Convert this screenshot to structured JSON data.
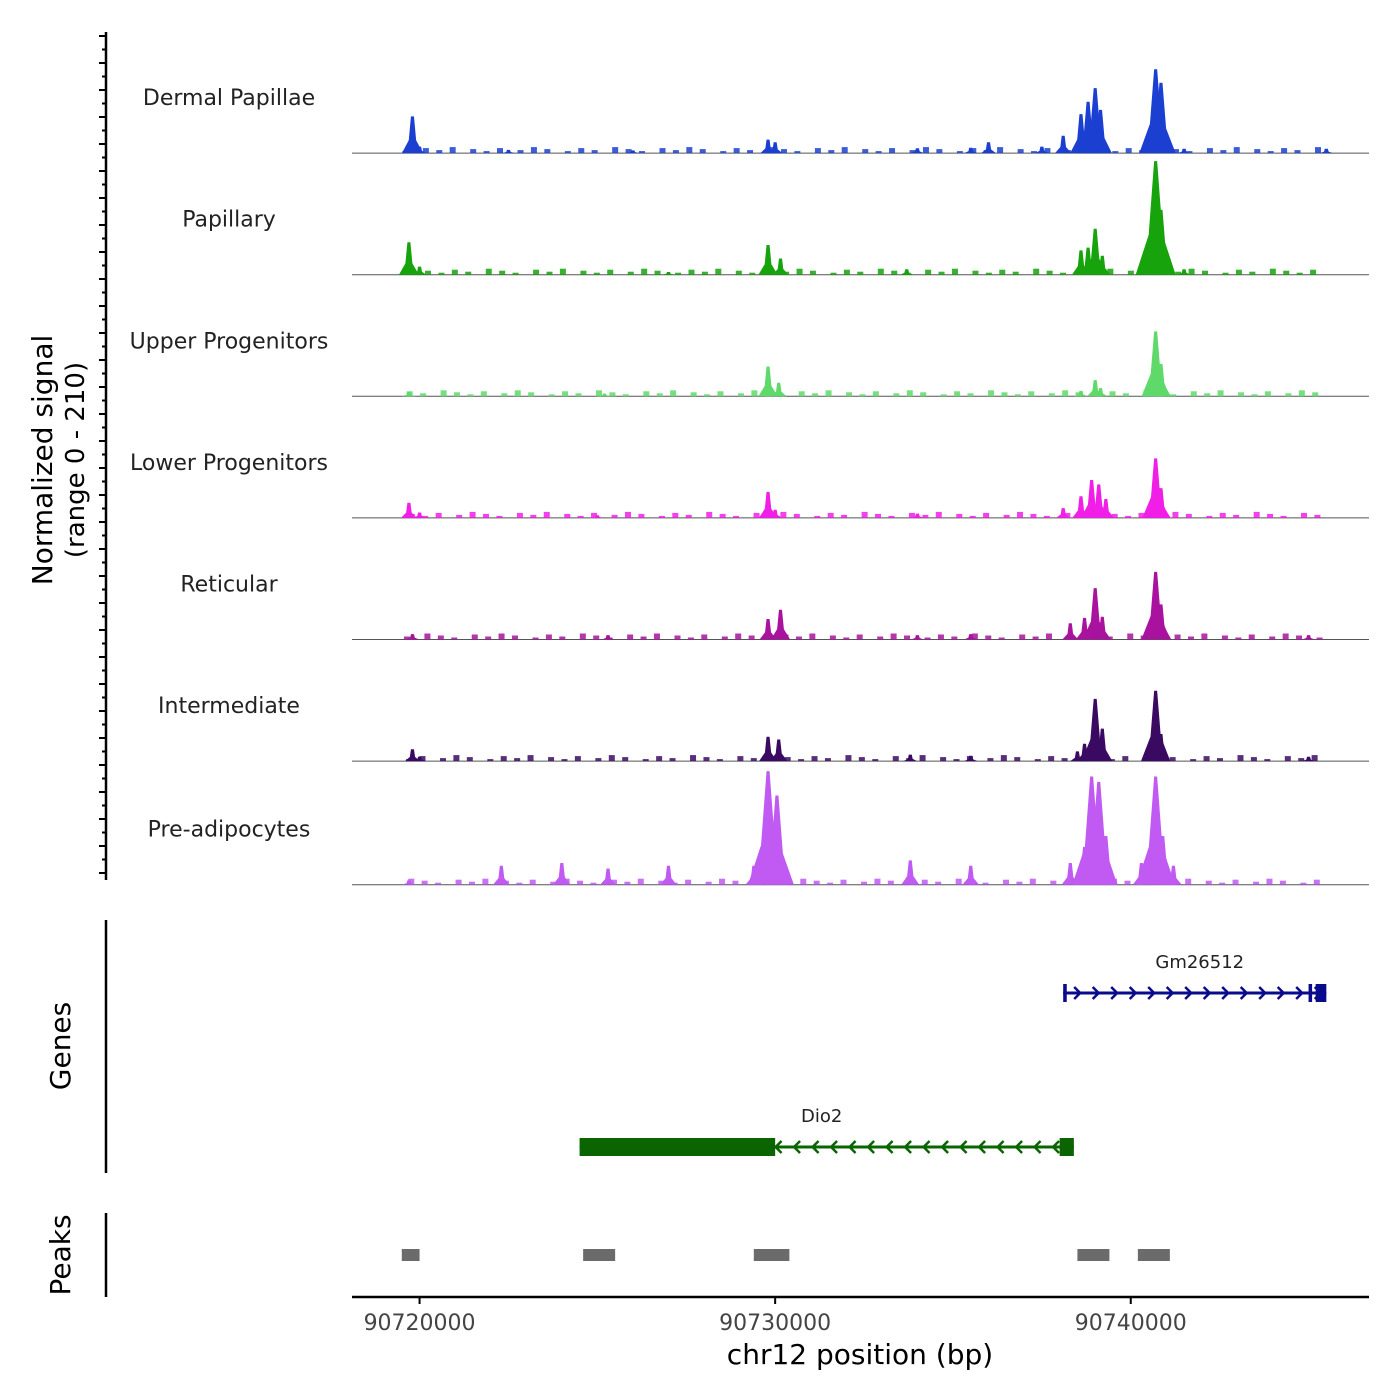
{
  "chart_data": {
    "type": "area",
    "title": "",
    "ylabel_line1": "Normalized signal",
    "ylabel_line2": "(range 0 - 210)",
    "xlabel": "chr12 position (bp)",
    "xlim": [
      90718100,
      90746700
    ],
    "ylim": [
      0,
      210
    ],
    "x_ticks": [
      "90720000",
      "90730000",
      "90740000"
    ],
    "x_tick_values": [
      90720000,
      90730000,
      90740000
    ],
    "series": [
      {
        "name": "Dermal Papillae",
        "color": "#1a3fd1",
        "peaks": [
          [
            90719800,
            68
          ],
          [
            90720000,
            12
          ],
          [
            90722500,
            6
          ],
          [
            90726000,
            5
          ],
          [
            90729800,
            25
          ],
          [
            90730000,
            20
          ],
          [
            90734000,
            9
          ],
          [
            90735500,
            10
          ],
          [
            90736000,
            20
          ],
          [
            90737500,
            12
          ],
          [
            90738100,
            32
          ],
          [
            90738600,
            72
          ],
          [
            90738800,
            95
          ],
          [
            90739000,
            120
          ],
          [
            90739150,
            80
          ],
          [
            90740700,
            155
          ],
          [
            90740850,
            130
          ],
          [
            90741500,
            8
          ],
          [
            90745500,
            8
          ]
        ]
      },
      {
        "name": "Papillary",
        "color": "#16a30c",
        "peaks": [
          [
            90719700,
            60
          ],
          [
            90720000,
            15
          ],
          [
            90727000,
            5
          ],
          [
            90729800,
            55
          ],
          [
            90730150,
            30
          ],
          [
            90733700,
            10
          ],
          [
            90738600,
            45
          ],
          [
            90738800,
            50
          ],
          [
            90739000,
            85
          ],
          [
            90739200,
            35
          ],
          [
            90740700,
            210
          ],
          [
            90740850,
            120
          ],
          [
            90741500,
            10
          ]
        ]
      },
      {
        "name": "Upper Progenitors",
        "color": "#5ed96a",
        "peaks": [
          [
            90719700,
            8
          ],
          [
            90725200,
            5
          ],
          [
            90729800,
            55
          ],
          [
            90730100,
            25
          ],
          [
            90738600,
            10
          ],
          [
            90739000,
            30
          ],
          [
            90739150,
            15
          ],
          [
            90740700,
            120
          ],
          [
            90740850,
            60
          ]
        ]
      },
      {
        "name": "Lower Progenitors",
        "color": "#f01ee6",
        "peaks": [
          [
            90719700,
            28
          ],
          [
            90720000,
            10
          ],
          [
            90725000,
            5
          ],
          [
            90729800,
            48
          ],
          [
            90730000,
            15
          ],
          [
            90734000,
            8
          ],
          [
            90738100,
            18
          ],
          [
            90738600,
            40
          ],
          [
            90738900,
            70
          ],
          [
            90739100,
            62
          ],
          [
            90739300,
            35
          ],
          [
            90740700,
            110
          ],
          [
            90740850,
            55
          ]
        ]
      },
      {
        "name": "Reticular",
        "color": "#a8129e",
        "peaks": [
          [
            90719800,
            10
          ],
          [
            90725300,
            8
          ],
          [
            90729800,
            38
          ],
          [
            90730150,
            55
          ],
          [
            90734000,
            8
          ],
          [
            90735500,
            10
          ],
          [
            90738300,
            30
          ],
          [
            90738700,
            40
          ],
          [
            90739000,
            95
          ],
          [
            90739200,
            42
          ],
          [
            90740700,
            125
          ],
          [
            90740850,
            65
          ],
          [
            90745000,
            8
          ]
        ]
      },
      {
        "name": "Intermediate",
        "color": "#3a0a63",
        "peaks": [
          [
            90719800,
            22
          ],
          [
            90720000,
            8
          ],
          [
            90729800,
            45
          ],
          [
            90730100,
            40
          ],
          [
            90733800,
            12
          ],
          [
            90735500,
            10
          ],
          [
            90738500,
            18
          ],
          [
            90738700,
            32
          ],
          [
            90739000,
            115
          ],
          [
            90739200,
            60
          ],
          [
            90740700,
            130
          ],
          [
            90740850,
            50
          ],
          [
            90745000,
            8
          ]
        ]
      },
      {
        "name": "Pre-adipocytes",
        "color": "#c05af2",
        "peaks": [
          [
            90719700,
            8
          ],
          [
            90722300,
            35
          ],
          [
            90724000,
            40
          ],
          [
            90725300,
            30
          ],
          [
            90727000,
            35
          ],
          [
            90729400,
            35
          ],
          [
            90729800,
            210
          ],
          [
            90730050,
            165
          ],
          [
            90733800,
            45
          ],
          [
            90735500,
            35
          ],
          [
            90738300,
            40
          ],
          [
            90738700,
            70
          ],
          [
            90738900,
            200
          ],
          [
            90739100,
            190
          ],
          [
            90739300,
            90
          ],
          [
            90740300,
            40
          ],
          [
            90740700,
            200
          ],
          [
            90740900,
            90
          ],
          [
            90741200,
            35
          ]
        ]
      }
    ],
    "genes": [
      {
        "name": "Gm26512",
        "strand": "+",
        "color": "#0a0a8c",
        "start": 90738100,
        "end": 90745500,
        "exons": [
          [
            90738100,
            90738200
          ],
          [
            90745000,
            90745100
          ],
          [
            90745200,
            90745500
          ]
        ]
      },
      {
        "name": "Dio2",
        "strand": "-",
        "color": "#0a6400",
        "start": 90724500,
        "end": 90738400,
        "exons": [
          [
            90724500,
            90730000
          ],
          [
            90738000,
            90738400
          ]
        ]
      }
    ],
    "peaks_regions": [
      [
        90719500,
        90720000
      ],
      [
        90724600,
        90725500
      ],
      [
        90729400,
        90730400
      ],
      [
        90738500,
        90739400
      ],
      [
        90740200,
        90741100
      ]
    ],
    "panels": {
      "genes_label": "Genes",
      "peaks_label": "Peaks"
    }
  }
}
